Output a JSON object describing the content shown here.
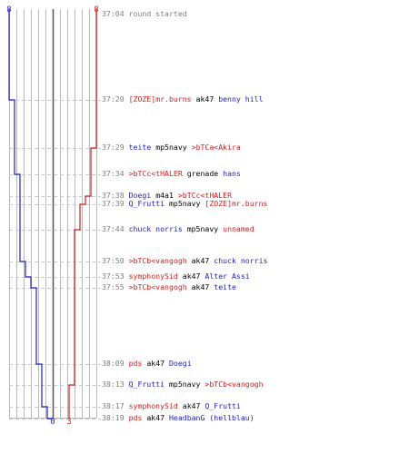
{
  "colors": {
    "blue": "#1f1fc0",
    "red": "#d21f1f",
    "weapon": "#000000",
    "time": "#808080",
    "grid": "#b8b8b8",
    "dash": "#c8c8c8",
    "center": "#555555"
  },
  "scores": {
    "blue_top": "8",
    "red_top": "8",
    "blue_bottom": "0",
    "red_bottom": "3"
  },
  "events": [
    {
      "time": "37:04",
      "text": "round started"
    },
    {
      "time": "37:20",
      "killer": "[ZOZE]mr.burns",
      "killer_team": "red",
      "weapon": "ak47",
      "victim": "benny hill",
      "victim_team": "blue"
    },
    {
      "time": "37:29",
      "killer": "teite",
      "killer_team": "blue",
      "weapon": "mp5navy",
      "victim": ">bTCa<Akira",
      "victim_team": "red"
    },
    {
      "time": "37:34",
      "killer": ">bTCc<tHALER",
      "killer_team": "red",
      "weapon": "grenade",
      "victim": "hans",
      "victim_team": "blue"
    },
    {
      "time": "37:38",
      "killer": "Doegi",
      "killer_team": "blue",
      "weapon": "m4a1",
      "victim": ">bTCc<tHALER",
      "victim_team": "red"
    },
    {
      "time": "37:39",
      "killer": "Q_Frutti",
      "killer_team": "blue",
      "weapon": "mp5navy",
      "victim": "[ZOZE]mr.burns",
      "victim_team": "red"
    },
    {
      "time": "37:44",
      "killer": "chuck norris",
      "killer_team": "blue",
      "weapon": "mp5navy",
      "victim": "unnamed",
      "victim_team": "red"
    },
    {
      "time": "37:50",
      "killer": ">bTCb<vangogh",
      "killer_team": "red",
      "weapon": "ak47",
      "victim": "chuck norris",
      "victim_team": "blue"
    },
    {
      "time": "37:53",
      "killer": "symphonySid",
      "killer_team": "red",
      "weapon": "ak47",
      "victim": "Alter Assi",
      "victim_team": "blue"
    },
    {
      "time": "37:55",
      "killer": ">bTCb<vangogh",
      "killer_team": "red",
      "weapon": "ak47",
      "victim": "teite",
      "victim_team": "blue"
    },
    {
      "time": "38:09",
      "killer": "pds",
      "killer_team": "red",
      "weapon": "ak47",
      "victim": "Doegi",
      "victim_team": "blue"
    },
    {
      "time": "38:13",
      "killer": "Q_Frutti",
      "killer_team": "blue",
      "weapon": "mp5navy",
      "victim": ">bTCb<vangogh",
      "victim_team": "red"
    },
    {
      "time": "38:17",
      "killer": "symphonySid",
      "killer_team": "red",
      "weapon": "ak47",
      "victim": "Q_Frutti",
      "victim_team": "blue"
    },
    {
      "time": "38:19",
      "killer": "pds",
      "killer_team": "red",
      "weapon": "ak47",
      "victim": "HeadbanG (hellblau)",
      "victim_team": "blue"
    }
  ],
  "blue_alive": [
    8,
    7,
    7,
    6,
    6,
    6,
    6,
    5,
    4,
    3,
    2,
    2,
    1,
    0
  ],
  "red_alive": [
    8,
    8,
    7,
    7,
    6,
    5,
    4,
    4,
    4,
    4,
    4,
    3,
    3,
    3
  ]
}
